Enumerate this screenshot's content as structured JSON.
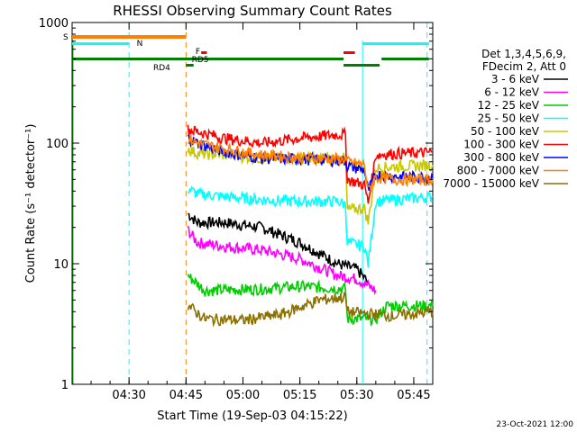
{
  "chart_data": {
    "type": "line",
    "title": "RHESSI Observing Summary Count Rates",
    "xlabel": "Start Time (19-Sep-03 04:15:22)",
    "ylabel": "Count Rate (s⁻¹ detector⁻¹)",
    "yscale": "log",
    "ylim": [
      1,
      1000
    ],
    "xlim_minutes": [
      0,
      95
    ],
    "xticks": [
      {
        "label": "04:30",
        "t": 15
      },
      {
        "label": "04:45",
        "t": 30
      },
      {
        "label": "05:00",
        "t": 45
      },
      {
        "label": "05:15",
        "t": 60
      },
      {
        "label": "05:30",
        "t": 75
      },
      {
        "label": "05:45",
        "t": 90
      }
    ],
    "yticks": [
      {
        "label": "1",
        "v": 1
      },
      {
        "label": "10",
        "v": 10
      },
      {
        "label": "100",
        "v": 100
      },
      {
        "label": "1000",
        "v": 1000
      }
    ],
    "legend_header": [
      "Det 1,3,4,5,6,9,",
      "FDecim 2, Att 0"
    ],
    "series": [
      {
        "name": "3 - 6 keV",
        "color": "#000000",
        "points": [
          [
            30.5,
            26
          ],
          [
            33,
            22
          ],
          [
            40,
            22
          ],
          [
            50,
            20
          ],
          [
            60,
            15
          ],
          [
            70,
            10
          ],
          [
            75,
            9
          ],
          [
            78,
            7
          ]
        ]
      },
      {
        "name": "6 - 12 keV",
        "color": "#ff00ff",
        "points": [
          [
            30.5,
            19
          ],
          [
            33,
            15
          ],
          [
            40,
            14
          ],
          [
            50,
            13
          ],
          [
            60,
            11
          ],
          [
            70,
            8
          ],
          [
            75,
            7.5
          ],
          [
            80,
            6
          ]
        ]
      },
      {
        "name": "12 - 25 keV",
        "color": "#00cc00",
        "points": [
          [
            30.5,
            8
          ],
          [
            35,
            6
          ],
          [
            50,
            6.2
          ],
          [
            60,
            6.5
          ],
          [
            72,
            6.2
          ],
          [
            72.5,
            3.5
          ],
          [
            80,
            3.5
          ],
          [
            83,
            4.5
          ],
          [
            95,
            4.5
          ]
        ]
      },
      {
        "name": "25 - 50 keV",
        "color": "#00ffff",
        "points": [
          [
            30.5,
            42
          ],
          [
            33,
            38
          ],
          [
            40,
            36
          ],
          [
            50,
            34
          ],
          [
            60,
            33
          ],
          [
            70,
            33
          ],
          [
            72,
            31
          ],
          [
            72.5,
            15
          ],
          [
            77,
            14
          ],
          [
            78,
            10
          ],
          [
            80,
            33
          ],
          [
            85,
            34
          ],
          [
            95,
            36
          ]
        ]
      },
      {
        "name": "50 - 100 keV",
        "color": "#c8c800",
        "points": [
          [
            30.5,
            90
          ],
          [
            33,
            82
          ],
          [
            40,
            80
          ],
          [
            50,
            75
          ],
          [
            60,
            76
          ],
          [
            70,
            75
          ],
          [
            72,
            75
          ],
          [
            72.5,
            28
          ],
          [
            77,
            29
          ],
          [
            78,
            22
          ],
          [
            80,
            62
          ],
          [
            85,
            64
          ],
          [
            95,
            66
          ]
        ]
      },
      {
        "name": "100 - 300 keV",
        "color": "#ff0000",
        "points": [
          [
            30.5,
            130
          ],
          [
            33,
            125
          ],
          [
            40,
            110
          ],
          [
            50,
            100
          ],
          [
            60,
            110
          ],
          [
            70,
            118
          ],
          [
            72,
            118
          ],
          [
            72.5,
            50
          ],
          [
            77,
            45
          ],
          [
            78,
            32
          ],
          [
            80,
            80
          ],
          [
            85,
            82
          ],
          [
            95,
            84
          ]
        ]
      },
      {
        "name": "300 - 800 keV",
        "color": "#0000ff",
        "points": [
          [
            30.5,
            110
          ],
          [
            33,
            100
          ],
          [
            40,
            85
          ],
          [
            50,
            75
          ],
          [
            60,
            74
          ],
          [
            70,
            72
          ],
          [
            72,
            72
          ],
          [
            72.5,
            65
          ],
          [
            77,
            60
          ],
          [
            78,
            40
          ],
          [
            80,
            55
          ],
          [
            85,
            53
          ],
          [
            95,
            52
          ]
        ]
      },
      {
        "name": "800 - 7000 keV",
        "color": "#ff8000",
        "points": [
          [
            30.5,
            110
          ],
          [
            33,
            100
          ],
          [
            40,
            90
          ],
          [
            50,
            80
          ],
          [
            60,
            76
          ],
          [
            70,
            74
          ],
          [
            72,
            74
          ],
          [
            72.5,
            70
          ],
          [
            77,
            66
          ],
          [
            78,
            40
          ],
          [
            80,
            52
          ],
          [
            85,
            50
          ],
          [
            95,
            50
          ]
        ]
      },
      {
        "name": "7000 - 15000 keV",
        "color": "#8b7000",
        "points": [
          [
            30.5,
            4.5
          ],
          [
            35,
            3.5
          ],
          [
            45,
            3.4
          ],
          [
            55,
            3.8
          ],
          [
            65,
            5
          ],
          [
            72,
            5.3
          ],
          [
            72.5,
            4
          ],
          [
            80,
            3.8
          ],
          [
            85,
            3.7
          ],
          [
            95,
            4
          ]
        ]
      }
    ],
    "flag_labels": [
      "S",
      "N",
      "F",
      "RD4",
      "RD5"
    ],
    "flag_colors": {
      "S": "#ff8000",
      "N": "#00ffff",
      "F": "#ff0000",
      "RD": "#008000"
    },
    "footer_date": "23-Oct-2021 12:00"
  }
}
